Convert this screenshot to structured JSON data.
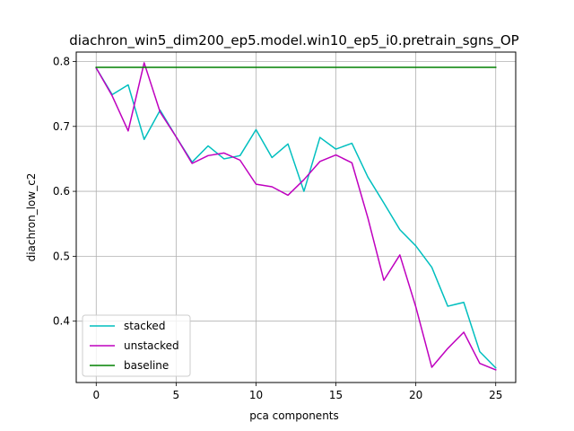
{
  "chart_data": {
    "type": "line",
    "title": "diachron_win5_dim200_ep5.model.win10_ep5_i0.pretrain_sgns_OP",
    "xlabel": "pca components",
    "ylabel": "diachron_low_c2",
    "xlim": [
      -1.25,
      26.25
    ],
    "ylim": [
      0.3055,
      0.8145
    ],
    "xticks": [
      0,
      5,
      10,
      15,
      20,
      25
    ],
    "yticks": [
      0.4,
      0.5,
      0.6,
      0.7,
      0.8
    ],
    "ytick_labels": [
      "0.4",
      "0.5",
      "0.6",
      "0.7",
      "0.8"
    ],
    "grid": true,
    "legend_position": "lower left",
    "x": [
      0,
      1,
      2,
      3,
      4,
      5,
      6,
      7,
      8,
      9,
      10,
      11,
      12,
      13,
      14,
      15,
      16,
      17,
      18,
      19,
      20,
      21,
      22,
      23,
      24,
      25
    ],
    "series": [
      {
        "name": "stacked",
        "color": "#00bfbf",
        "values": [
          0.79,
          0.749,
          0.764,
          0.68,
          0.725,
          0.684,
          0.645,
          0.67,
          0.65,
          0.655,
          0.695,
          0.652,
          0.673,
          0.6,
          0.683,
          0.665,
          0.674,
          0.622,
          0.582,
          0.541,
          0.516,
          0.483,
          0.423,
          0.429,
          0.353,
          0.328
        ]
      },
      {
        "name": "unstacked",
        "color": "#bf00bf",
        "values": [
          0.79,
          0.747,
          0.693,
          0.798,
          0.722,
          0.684,
          0.643,
          0.655,
          0.659,
          0.648,
          0.611,
          0.607,
          0.594,
          0.618,
          0.646,
          0.656,
          0.644,
          0.559,
          0.463,
          0.502,
          0.422,
          0.329,
          0.358,
          0.383,
          0.335,
          0.325
        ]
      },
      {
        "name": "baseline",
        "color": "#008000",
        "values": [
          0.791,
          0.791,
          0.791,
          0.791,
          0.791,
          0.791,
          0.791,
          0.791,
          0.791,
          0.791,
          0.791,
          0.791,
          0.791,
          0.791,
          0.791,
          0.791,
          0.791,
          0.791,
          0.791,
          0.791,
          0.791,
          0.791,
          0.791,
          0.791,
          0.791,
          0.791
        ]
      }
    ]
  }
}
